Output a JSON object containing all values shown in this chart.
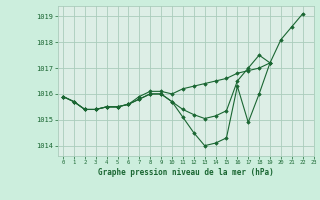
{
  "title": "Graphe pression niveau de la mer (hPa)",
  "background_color": "#cceedd",
  "plot_bg_color": "#ddeee6",
  "grid_color": "#aaccbb",
  "line_color": "#1a6632",
  "marker_color": "#1a6632",
  "xlim": [
    -0.5,
    23
  ],
  "ylim": [
    1013.6,
    1019.4
  ],
  "yticks": [
    1014,
    1015,
    1016,
    1017,
    1018,
    1019
  ],
  "xticks": [
    0,
    1,
    2,
    3,
    4,
    5,
    6,
    7,
    8,
    9,
    10,
    11,
    12,
    13,
    14,
    15,
    16,
    17,
    18,
    19,
    20,
    21,
    22,
    23
  ],
  "series": [
    [
      1015.9,
      1015.7,
      1015.4,
      1015.4,
      1015.5,
      1015.5,
      1015.6,
      1015.8,
      1016.0,
      1016.0,
      1015.7,
      1015.1,
      1014.5,
      1014.0,
      1014.1,
      1014.3,
      1016.3,
      1014.9,
      1016.0,
      1017.2,
      1018.1,
      1018.6,
      1019.1,
      null
    ],
    [
      1015.9,
      1015.7,
      1015.4,
      1015.4,
      1015.5,
      1015.5,
      1015.6,
      1015.9,
      1016.1,
      1016.1,
      1016.0,
      1016.2,
      1016.3,
      1016.4,
      1016.5,
      1016.6,
      1016.8,
      1016.9,
      1017.0,
      1017.2,
      null,
      null,
      null,
      null
    ],
    [
      1015.9,
      1015.7,
      1015.4,
      1015.4,
      1015.5,
      1015.5,
      1015.6,
      1015.8,
      1016.0,
      1016.0,
      1015.7,
      1015.4,
      1015.2,
      1015.05,
      1015.15,
      1015.35,
      1016.5,
      1017.0,
      1017.5,
      1017.2,
      null,
      null,
      null,
      null
    ]
  ]
}
